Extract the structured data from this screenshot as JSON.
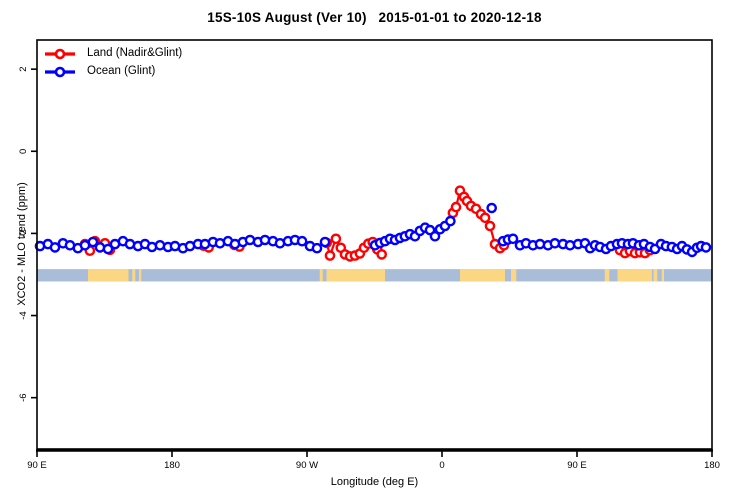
{
  "title": "15S-10S August (Ver 10)   2015-01-01 to 2020-12-18",
  "axes": {
    "xlabel": "Longitude (deg E)",
    "ylabel": "XCO2 - MLO trend (ppm)"
  },
  "legend": {
    "position": "top-left",
    "items": [
      {
        "label": "Land (Nadir&Glint)",
        "color": "#ff0000"
      },
      {
        "label": "Ocean (Glint)",
        "color": "#0000ff"
      }
    ]
  },
  "chart_data": {
    "type": "line",
    "title": "15S-10S August (Ver 10)   2015-01-01 to 2020-12-18",
    "xlabel": "Longitude (deg E)",
    "ylabel": "XCO2 - MLO trend (ppm)",
    "xlim": [
      90,
      540
    ],
    "ylim": [
      -7.25,
      2.71
    ],
    "grid": false,
    "marker": "open-circle",
    "x_ticks": [
      {
        "v": 90,
        "label": "90 E"
      },
      {
        "v": 180,
        "label": "180"
      },
      {
        "v": 270,
        "label": "90 W"
      },
      {
        "v": 360,
        "label": "0"
      },
      {
        "v": 450,
        "label": "90 E"
      },
      {
        "v": 540,
        "label": "180"
      }
    ],
    "y_ticks": [
      {
        "v": 2,
        "label": "2"
      },
      {
        "v": 0,
        "label": "0"
      },
      {
        "v": -2,
        "label": "-2"
      },
      {
        "v": -4,
        "label": "-4"
      },
      {
        "v": -6,
        "label": "-6"
      }
    ],
    "map_strip": {
      "description": "latitude-band map 15S-10S drawn as horizontal ribbon",
      "value_top": -2.87,
      "value_bottom": -3.17,
      "ocean_color": "#a9bcd8",
      "land_color": "#fbd784",
      "land_patches_deg": [
        [
          124,
          151
        ],
        [
          153.5,
          155.5
        ],
        [
          158,
          159.5
        ],
        [
          278.5,
          280.5
        ],
        [
          283,
          322
        ],
        [
          372,
          402
        ],
        [
          406,
          409.5
        ],
        [
          468.5,
          471.5
        ],
        [
          477,
          500
        ],
        [
          501,
          503.5
        ],
        [
          506.5,
          508
        ]
      ]
    },
    "series": [
      {
        "name": "Land (Nadir&Glint)",
        "color": "#ff0000",
        "segments": [
          [
            [
              122,
              -2.26
            ],
            [
              125.3,
              -2.42
            ],
            [
              128.7,
              -2.19
            ],
            [
              132,
              -2.33
            ],
            [
              135.3,
              -2.24
            ],
            [
              138.7,
              -2.4
            ]
          ],
          [
            [
              201,
              -2.3
            ],
            [
              204.5,
              -2.34
            ]
          ],
          [
            [
              221.5,
              -2.28
            ],
            [
              225,
              -2.32
            ]
          ],
          [
            [
              283.1,
              -2.23
            ],
            [
              285.3,
              -2.54
            ],
            [
              289.3,
              -2.13
            ],
            [
              292.5,
              -2.35
            ],
            [
              295.3,
              -2.51
            ],
            [
              298.7,
              -2.56
            ],
            [
              302,
              -2.54
            ],
            [
              305.3,
              -2.49
            ],
            [
              308,
              -2.35
            ],
            [
              310.9,
              -2.25
            ],
            [
              313.8,
              -2.21
            ],
            [
              316.9,
              -2.39
            ],
            [
              319.8,
              -2.51
            ]
          ],
          [
            [
              367.3,
              -1.5
            ],
            [
              369.3,
              -1.36
            ],
            [
              372,
              -0.96
            ],
            [
              374.7,
              -1.11
            ],
            [
              376.7,
              -1.21
            ],
            [
              379.3,
              -1.33
            ],
            [
              382.7,
              -1.4
            ],
            [
              386,
              -1.53
            ],
            [
              388.7,
              -1.62
            ],
            [
              392,
              -1.82
            ],
            [
              395.3,
              -2.26
            ],
            [
              398.7,
              -2.36
            ],
            [
              401.3,
              -2.29
            ]
          ],
          [
            [
              478.7,
              -2.41
            ],
            [
              482,
              -2.48
            ],
            [
              485.3,
              -2.43
            ],
            [
              488.7,
              -2.48
            ],
            [
              492,
              -2.46
            ],
            [
              495.3,
              -2.48
            ],
            [
              498.7,
              -2.41
            ]
          ]
        ]
      },
      {
        "name": "Ocean (Glint)",
        "color": "#0000ff",
        "segments": [
          [
            [
              92,
              -2.31
            ],
            [
              97.3,
              -2.26
            ],
            [
              102,
              -2.34
            ],
            [
              107.3,
              -2.24
            ],
            [
              112,
              -2.29
            ],
            [
              117.3,
              -2.36
            ],
            [
              122,
              -2.29
            ],
            [
              127.3,
              -2.21
            ],
            [
              132,
              -2.34
            ],
            [
              137.3,
              -2.38
            ],
            [
              142,
              -2.26
            ],
            [
              147.3,
              -2.19
            ],
            [
              152,
              -2.26
            ],
            [
              157.3,
              -2.31
            ],
            [
              162,
              -2.26
            ],
            [
              166.7,
              -2.33
            ],
            [
              172,
              -2.29
            ],
            [
              177.3,
              -2.33
            ],
            [
              182,
              -2.31
            ],
            [
              187.3,
              -2.36
            ],
            [
              192,
              -2.31
            ],
            [
              197.3,
              -2.26
            ],
            [
              202,
              -2.26
            ],
            [
              207.3,
              -2.21
            ],
            [
              212,
              -2.24
            ],
            [
              217.3,
              -2.19
            ],
            [
              222,
              -2.26
            ],
            [
              227.3,
              -2.21
            ],
            [
              232,
              -2.16
            ],
            [
              237.3,
              -2.21
            ],
            [
              242,
              -2.16
            ],
            [
              247.3,
              -2.19
            ],
            [
              252,
              -2.24
            ],
            [
              257.3,
              -2.19
            ],
            [
              262,
              -2.16
            ],
            [
              266.7,
              -2.19
            ],
            [
              272,
              -2.31
            ],
            [
              276.7,
              -2.36
            ],
            [
              282,
              -2.21
            ]
          ],
          [
            [
              315.3,
              -2.29
            ],
            [
              318.7,
              -2.23
            ],
            [
              322,
              -2.19
            ],
            [
              325.3,
              -2.13
            ],
            [
              328.7,
              -2.16
            ],
            [
              332,
              -2.11
            ],
            [
              335.3,
              -2.07
            ],
            [
              338.7,
              -2.02
            ],
            [
              342,
              -2.07
            ],
            [
              345.3,
              -1.94
            ],
            [
              348.7,
              -1.86
            ],
            [
              352,
              -1.92
            ],
            [
              355.3,
              -2.07
            ],
            [
              358.7,
              -1.9
            ],
            [
              362,
              -1.82
            ],
            [
              365.6,
              -1.7
            ]
          ],
          [
            [
              393.1,
              -1.38
            ]
          ],
          [
            [
              400.7,
              -2.19
            ],
            [
              404,
              -2.15
            ],
            [
              407.3,
              -2.13
            ],
            [
              412,
              -2.29
            ],
            [
              416,
              -2.24
            ],
            [
              420.7,
              -2.29
            ],
            [
              425.3,
              -2.26
            ],
            [
              430.7,
              -2.29
            ],
            [
              435.3,
              -2.24
            ],
            [
              440.7,
              -2.26
            ],
            [
              445.3,
              -2.29
            ],
            [
              450.7,
              -2.26
            ],
            [
              455.3,
              -2.24
            ],
            [
              458.7,
              -2.36
            ],
            [
              462,
              -2.29
            ],
            [
              465.3,
              -2.33
            ],
            [
              469.3,
              -2.38
            ],
            [
              472.7,
              -2.31
            ],
            [
              476.7,
              -2.26
            ],
            [
              480,
              -2.24
            ],
            [
              484,
              -2.26
            ],
            [
              487.3,
              -2.24
            ],
            [
              491.3,
              -2.29
            ],
            [
              494.7,
              -2.26
            ],
            [
              498.7,
              -2.33
            ],
            [
              502,
              -2.38
            ],
            [
              506,
              -2.26
            ],
            [
              509.3,
              -2.31
            ],
            [
              513.3,
              -2.33
            ],
            [
              516.7,
              -2.38
            ],
            [
              520,
              -2.31
            ],
            [
              523.3,
              -2.39
            ],
            [
              526.7,
              -2.45
            ],
            [
              530,
              -2.35
            ],
            [
              532.7,
              -2.31
            ],
            [
              536,
              -2.34
            ]
          ]
        ]
      }
    ]
  }
}
